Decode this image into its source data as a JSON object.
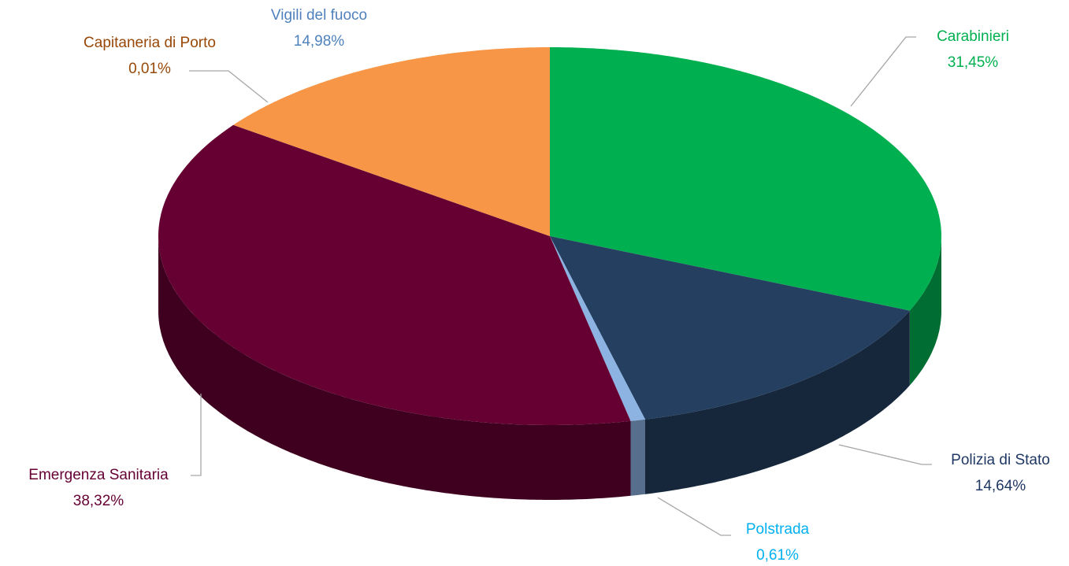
{
  "chart_data": {
    "type": "pie3d",
    "categories": [
      "Carabinieri",
      "Polizia di Stato",
      "Polstrada",
      "Emergenza Sanitaria",
      "Capitaneria di Porto",
      "Vigili del fuoco"
    ],
    "values": [
      31.45,
      14.64,
      0.61,
      38.32,
      0.01,
      14.98
    ],
    "value_labels": [
      "31,45%",
      "14,64%",
      "0,61%",
      "38,32%",
      "0,01%",
      "14,98%"
    ],
    "colors": [
      "#00b050",
      "#243f60",
      "#8db3e2",
      "#660033",
      "#984807",
      "#f79646"
    ],
    "label_colors": [
      "#00b050",
      "#1f3864",
      "#00b0f0",
      "#660033",
      "#984807",
      "#4f81bd"
    ]
  }
}
